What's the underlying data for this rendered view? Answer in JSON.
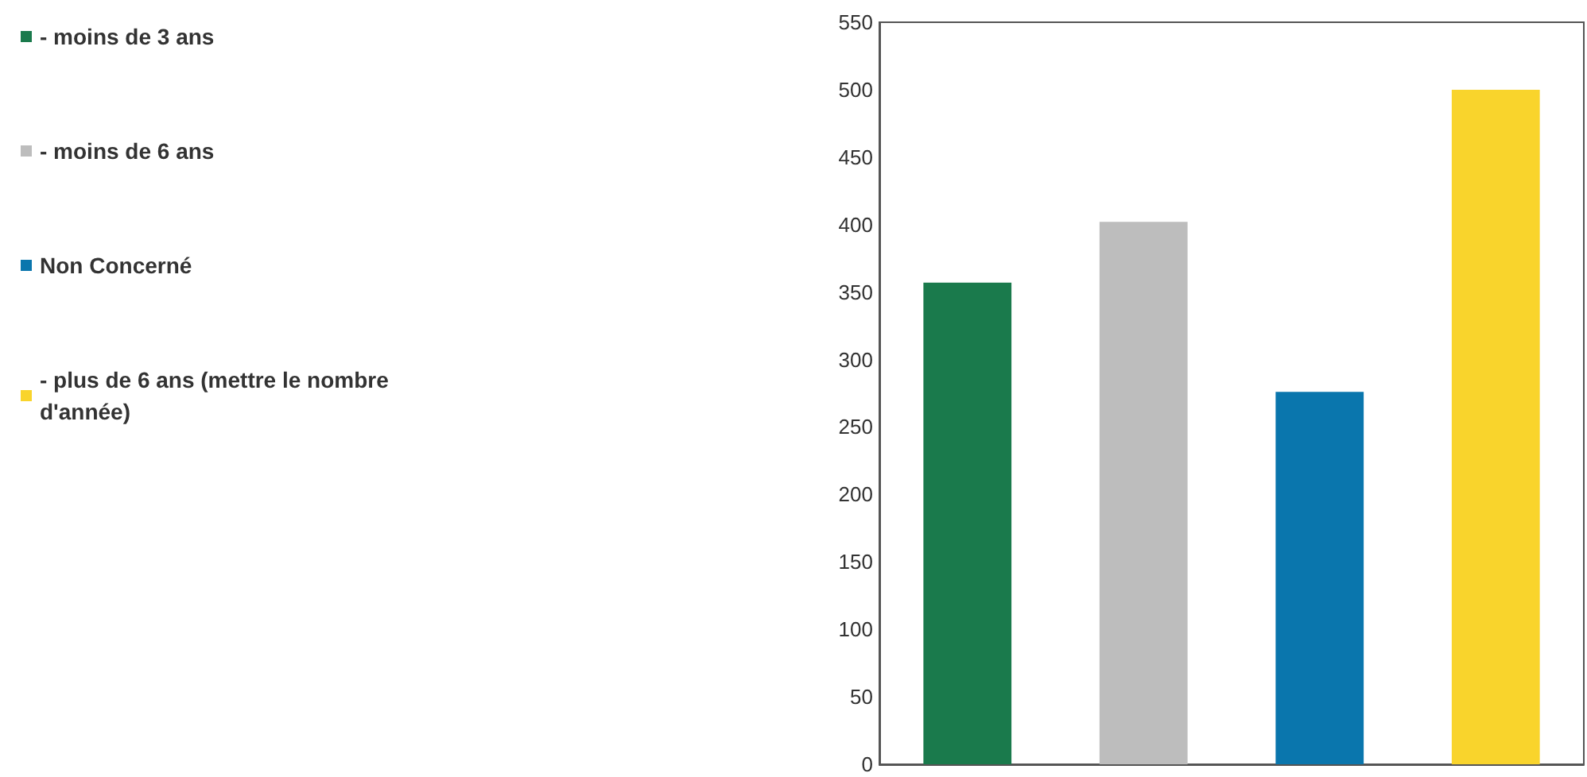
{
  "chart_data": {
    "type": "bar",
    "categories": [
      null,
      null,
      null,
      null
    ],
    "stacked": true,
    "series": [
      {
        "name": "- moins de 3 ans",
        "color": "#1a7a4c",
        "values": [
          357,
          null,
          null,
          null
        ]
      },
      {
        "name": "- moins de 6 ans",
        "color": "#bdbdbd",
        "values": [
          null,
          402,
          null,
          null
        ]
      },
      {
        "name": "Non Concerné",
        "color": "#0a76ad",
        "values": [
          null,
          null,
          276,
          null
        ]
      },
      {
        "name": "- plus de 6 ans (mettre le nombre d'année)",
        "color": "#f9d42c",
        "values": [
          null,
          null,
          null,
          500
        ]
      }
    ],
    "ylim": [
      0,
      550
    ],
    "yticks": [
      0,
      50,
      100,
      150,
      200,
      250,
      300,
      350,
      400,
      450,
      500,
      550
    ],
    "grid": false,
    "legend": "left"
  }
}
